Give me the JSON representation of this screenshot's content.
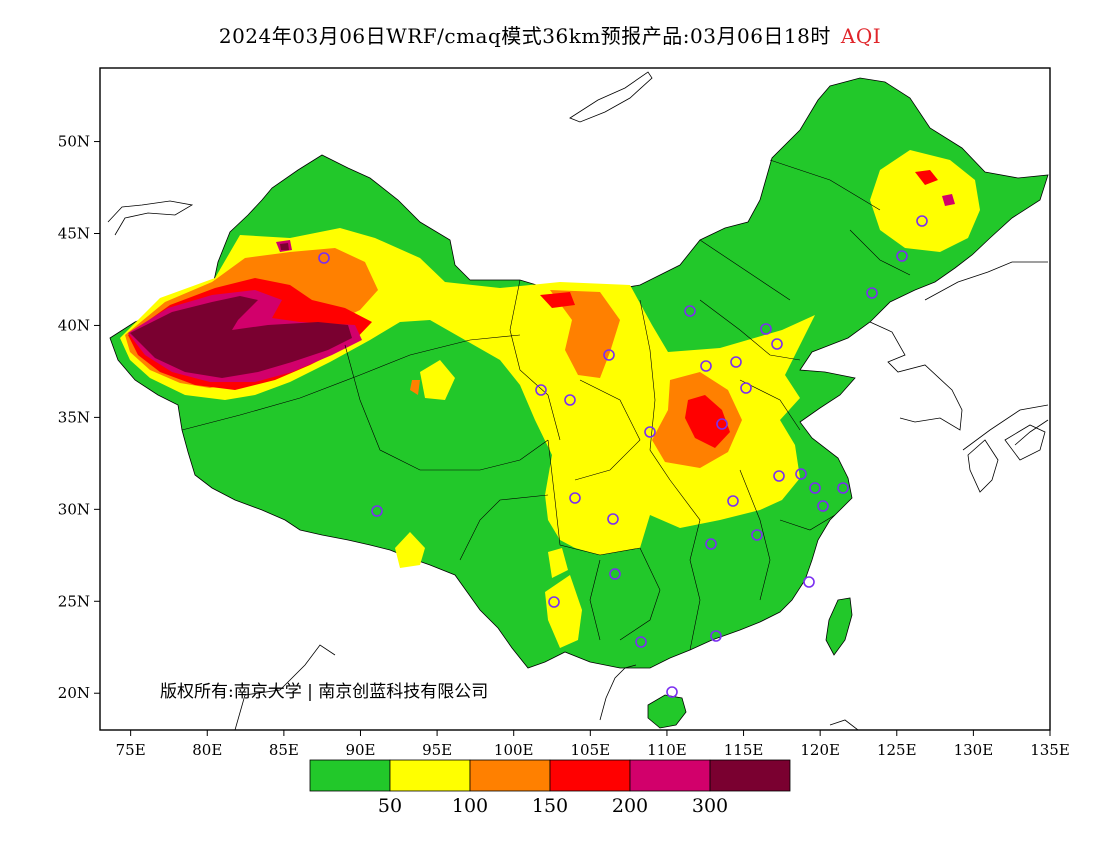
{
  "title": {
    "main": "2024年03月06日WRF/cmaq模式36km预报产品:03月06日18时",
    "variable": "AQI"
  },
  "map": {
    "lon_ticks": [
      "75E",
      "80E",
      "85E",
      "90E",
      "95E",
      "100E",
      "105E",
      "110E",
      "115E",
      "120E",
      "125E",
      "130E",
      "135E"
    ],
    "lat_ticks": [
      "50N",
      "45N",
      "40N",
      "35N",
      "30N",
      "25N",
      "20N"
    ],
    "lon_range": [
      73,
      135
    ],
    "lat_range": [
      18,
      54
    ],
    "copyright": "版权所有:南京大学 | 南京创蓝科技有限公司"
  },
  "legend": {
    "colors": [
      "#22c82a",
      "#ffff00",
      "#ff8000",
      "#ff0000",
      "#d2006b",
      "#7a0030"
    ],
    "labels": [
      "50",
      "100",
      "150",
      "200",
      "300"
    ]
  },
  "colors": {
    "good": "#22c82a",
    "moderate": "#ffff00",
    "unhealthy_sensitive": "#ff8000",
    "unhealthy": "#ff0000",
    "very_unhealthy": "#d2006b",
    "hazardous": "#7a0030",
    "station_marker": "#7b2ff0"
  }
}
